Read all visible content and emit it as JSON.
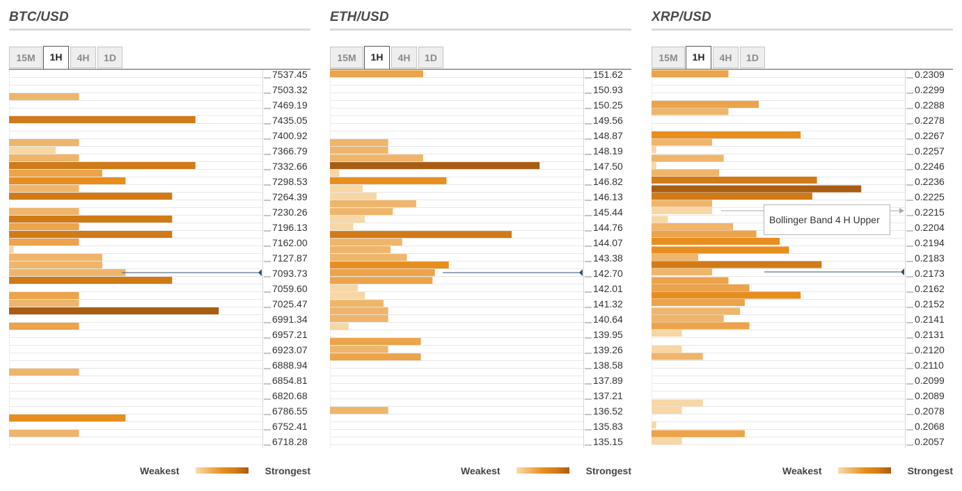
{
  "legend": {
    "weakest": "Weakest",
    "strongest": "Strongest"
  },
  "tooltip": {
    "text": "Bollinger Band 4 H Upper"
  },
  "colors": {
    "l1": "#f7d7a6",
    "l2": "#efb56b",
    "l3": "#eca34a",
    "l4": "#e88e1e",
    "l5": "#d17a18",
    "l6": "#a95d13",
    "grid": "#e8e8e8",
    "marker": "#2f4f6f"
  },
  "chart_data": [
    {
      "type": "bar",
      "title": "BTC/USD",
      "tabs": [
        "15M",
        "1H",
        "4H",
        "1D"
      ],
      "active_tab": "1H",
      "price_labels": [
        "7537.45",
        "7503.32",
        "7469.19",
        "7435.05",
        "7400.92",
        "7366.79",
        "7332.66",
        "7298.53",
        "7264.39",
        "7230.26",
        "7196.13",
        "7162.00",
        "7127.87",
        "7093.73",
        "7059.60",
        "7025.47",
        "6991.34",
        "6957.21",
        "6923.07",
        "6888.94",
        "6854.81",
        "6820.68",
        "6786.55",
        "6752.41",
        "6718.28"
      ],
      "y_range": [
        6718.28,
        7537.45
      ],
      "current_price": 7093.73,
      "bars": [
        {
          "y": 7537.45,
          "value": 0,
          "level": 0
        },
        {
          "y": 7520.38,
          "value": 0,
          "level": 0
        },
        {
          "y": 7503.32,
          "value": 0,
          "level": 0
        },
        {
          "y": 7486.25,
          "value": 3,
          "level": 2
        },
        {
          "y": 7469.19,
          "value": 0,
          "level": 0
        },
        {
          "y": 7452.12,
          "value": 0,
          "level": 0
        },
        {
          "y": 7435.05,
          "value": 8,
          "level": 5
        },
        {
          "y": 7417.98,
          "value": 0,
          "level": 0
        },
        {
          "y": 7400.92,
          "value": 0,
          "level": 0
        },
        {
          "y": 7383.85,
          "value": 3,
          "level": 2
        },
        {
          "y": 7366.79,
          "value": 2,
          "level": 1
        },
        {
          "y": 7349.72,
          "value": 3,
          "level": 2
        },
        {
          "y": 7332.66,
          "value": 8,
          "level": 5
        },
        {
          "y": 7315.59,
          "value": 4,
          "level": 3
        },
        {
          "y": 7298.53,
          "value": 5,
          "level": 4
        },
        {
          "y": 7281.46,
          "value": 3,
          "level": 2
        },
        {
          "y": 7264.39,
          "value": 7,
          "level": 5
        },
        {
          "y": 7247.32,
          "value": 0,
          "level": 0
        },
        {
          "y": 7230.26,
          "value": 3,
          "level": 2
        },
        {
          "y": 7213.19,
          "value": 7,
          "level": 5
        },
        {
          "y": 7196.13,
          "value": 3,
          "level": 3
        },
        {
          "y": 7179.06,
          "value": 7,
          "level": 5
        },
        {
          "y": 7162.0,
          "value": 3,
          "level": 3
        },
        {
          "y": 7144.93,
          "value": 0.2,
          "level": 1
        },
        {
          "y": 7127.87,
          "value": 4,
          "level": 2
        },
        {
          "y": 7110.8,
          "value": 4,
          "level": 2
        },
        {
          "y": 7093.73,
          "value": 5,
          "level": 2
        },
        {
          "y": 7076.66,
          "value": 7,
          "level": 5
        },
        {
          "y": 7059.6,
          "value": 0,
          "level": 0
        },
        {
          "y": 7042.53,
          "value": 3,
          "level": 3
        },
        {
          "y": 7025.47,
          "value": 3,
          "level": 2
        },
        {
          "y": 7008.4,
          "value": 9,
          "level": 6
        },
        {
          "y": 6991.34,
          "value": 0,
          "level": 0
        },
        {
          "y": 6974.27,
          "value": 3,
          "level": 3
        },
        {
          "y": 6957.21,
          "value": 0,
          "level": 0
        },
        {
          "y": 6940.14,
          "value": 0,
          "level": 0
        },
        {
          "y": 6923.07,
          "value": 0,
          "level": 0
        },
        {
          "y": 6906.0,
          "value": 0,
          "level": 0
        },
        {
          "y": 6888.94,
          "value": 0,
          "level": 0
        },
        {
          "y": 6871.87,
          "value": 3,
          "level": 2
        },
        {
          "y": 6854.81,
          "value": 0,
          "level": 0
        },
        {
          "y": 6837.74,
          "value": 0,
          "level": 0
        },
        {
          "y": 6820.68,
          "value": 0,
          "level": 0
        },
        {
          "y": 6803.61,
          "value": 0,
          "level": 0
        },
        {
          "y": 6786.55,
          "value": 0,
          "level": 0
        },
        {
          "y": 6769.48,
          "value": 5,
          "level": 4
        },
        {
          "y": 6752.41,
          "value": 0,
          "level": 0
        },
        {
          "y": 6735.34,
          "value": 3,
          "level": 2
        },
        {
          "y": 6718.28,
          "value": 0,
          "level": 0
        }
      ],
      "x_max": 10
    },
    {
      "type": "bar",
      "title": "ETH/USD",
      "tabs": [
        "15M",
        "1H",
        "4H",
        "1D"
      ],
      "active_tab": "1H",
      "price_labels": [
        "151.62",
        "150.93",
        "150.25",
        "149.56",
        "148.87",
        "148.19",
        "147.50",
        "146.82",
        "146.13",
        "145.44",
        "144.76",
        "144.07",
        "143.38",
        "142.70",
        "142.01",
        "141.32",
        "140.64",
        "139.95",
        "139.26",
        "138.58",
        "137.89",
        "137.21",
        "136.52",
        "135.83",
        "135.15"
      ],
      "y_range": [
        135.15,
        151.62
      ],
      "current_price": 142.7,
      "bars": [
        {
          "y": 151.62,
          "value": 4,
          "level": 3
        },
        {
          "y": 151.28,
          "value": 0,
          "level": 0
        },
        {
          "y": 150.93,
          "value": 0,
          "level": 0
        },
        {
          "y": 150.59,
          "value": 0,
          "level": 0
        },
        {
          "y": 150.25,
          "value": 0,
          "level": 0
        },
        {
          "y": 149.9,
          "value": 0,
          "level": 0
        },
        {
          "y": 149.56,
          "value": 0,
          "level": 0
        },
        {
          "y": 149.22,
          "value": 0,
          "level": 0
        },
        {
          "y": 148.87,
          "value": 0,
          "level": 0
        },
        {
          "y": 148.53,
          "value": 2.5,
          "level": 2
        },
        {
          "y": 148.19,
          "value": 2.5,
          "level": 2
        },
        {
          "y": 147.84,
          "value": 4,
          "level": 2
        },
        {
          "y": 147.5,
          "value": 9,
          "level": 6
        },
        {
          "y": 147.16,
          "value": 0.4,
          "level": 1
        },
        {
          "y": 146.82,
          "value": 5,
          "level": 4
        },
        {
          "y": 146.47,
          "value": 1.4,
          "level": 1
        },
        {
          "y": 146.13,
          "value": 2,
          "level": 1
        },
        {
          "y": 145.79,
          "value": 3.7,
          "level": 2
        },
        {
          "y": 145.44,
          "value": 2.7,
          "level": 2
        },
        {
          "y": 145.1,
          "value": 1.5,
          "level": 1
        },
        {
          "y": 144.76,
          "value": 1,
          "level": 1
        },
        {
          "y": 144.41,
          "value": 7.8,
          "level": 5
        },
        {
          "y": 144.07,
          "value": 3.1,
          "level": 2
        },
        {
          "y": 143.73,
          "value": 2.6,
          "level": 2
        },
        {
          "y": 143.38,
          "value": 3.3,
          "level": 2
        },
        {
          "y": 143.04,
          "value": 5.1,
          "level": 4
        },
        {
          "y": 142.7,
          "value": 4.5,
          "level": 3
        },
        {
          "y": 142.35,
          "value": 4.4,
          "level": 3
        },
        {
          "y": 142.01,
          "value": 1.2,
          "level": 1
        },
        {
          "y": 141.67,
          "value": 1.5,
          "level": 1
        },
        {
          "y": 141.32,
          "value": 2.3,
          "level": 2
        },
        {
          "y": 140.98,
          "value": 2.5,
          "level": 2
        },
        {
          "y": 140.64,
          "value": 2.5,
          "level": 2
        },
        {
          "y": 140.29,
          "value": 0.8,
          "level": 1
        },
        {
          "y": 139.95,
          "value": 0,
          "level": 0
        },
        {
          "y": 139.61,
          "value": 3.9,
          "level": 3
        },
        {
          "y": 139.26,
          "value": 2.5,
          "level": 2
        },
        {
          "y": 138.92,
          "value": 3.9,
          "level": 3
        },
        {
          "y": 138.58,
          "value": 0,
          "level": 0
        },
        {
          "y": 138.23,
          "value": 0,
          "level": 0
        },
        {
          "y": 137.89,
          "value": 0,
          "level": 0
        },
        {
          "y": 137.55,
          "value": 0,
          "level": 0
        },
        {
          "y": 137.21,
          "value": 0,
          "level": 0
        },
        {
          "y": 136.86,
          "value": 0,
          "level": 0
        },
        {
          "y": 136.52,
          "value": 2.5,
          "level": 2
        },
        {
          "y": 136.18,
          "value": 0,
          "level": 0
        },
        {
          "y": 135.83,
          "value": 0,
          "level": 0
        },
        {
          "y": 135.49,
          "value": 0,
          "level": 0
        },
        {
          "y": 135.15,
          "value": 0,
          "level": 0
        }
      ],
      "x_max": 10
    },
    {
      "type": "bar",
      "title": "XRP/USD",
      "tabs": [
        "15M",
        "1H",
        "4H",
        "1D"
      ],
      "active_tab": "1H",
      "price_labels": [
        "0.2309",
        "0.2299",
        "0.2288",
        "0.2278",
        "0.2267",
        "0.2257",
        "0.2246",
        "0.2236",
        "0.2225",
        "0.2215",
        "0.2204",
        "0.2194",
        "0.2183",
        "0.2173",
        "0.2162",
        "0.2152",
        "0.2141",
        "0.2131",
        "0.2120",
        "0.2110",
        "0.2099",
        "0.2089",
        "0.2078",
        "0.2068",
        "0.2057"
      ],
      "y_range": [
        0.2057,
        0.2309
      ],
      "current_price": 0.2173,
      "annotation": {
        "y": 0.2215,
        "text": "Bollinger Band 4 H Upper"
      },
      "bars": [
        {
          "y": 0.2309,
          "value": 3.3,
          "level": 3
        },
        {
          "y": 0.2304,
          "value": 0,
          "level": 0
        },
        {
          "y": 0.2299,
          "value": 0,
          "level": 0
        },
        {
          "y": 0.2293,
          "value": 0,
          "level": 0
        },
        {
          "y": 0.2288,
          "value": 4.6,
          "level": 3
        },
        {
          "y": 0.2283,
          "value": 3.3,
          "level": 2
        },
        {
          "y": 0.2278,
          "value": 0,
          "level": 0
        },
        {
          "y": 0.2273,
          "value": 0,
          "level": 0
        },
        {
          "y": 0.2267,
          "value": 6.4,
          "level": 4
        },
        {
          "y": 0.2262,
          "value": 2.6,
          "level": 2
        },
        {
          "y": 0.2257,
          "value": 0.2,
          "level": 1
        },
        {
          "y": 0.2251,
          "value": 3.1,
          "level": 2
        },
        {
          "y": 0.2246,
          "value": 0.2,
          "level": 1
        },
        {
          "y": 0.2241,
          "value": 2.9,
          "level": 2
        },
        {
          "y": 0.2236,
          "value": 7.1,
          "level": 5
        },
        {
          "y": 0.223,
          "value": 9,
          "level": 6
        },
        {
          "y": 0.2225,
          "value": 6.9,
          "level": 5
        },
        {
          "y": 0.222,
          "value": 2.6,
          "level": 2
        },
        {
          "y": 0.2215,
          "value": 2.6,
          "level": 1
        },
        {
          "y": 0.2209,
          "value": 0.7,
          "level": 1
        },
        {
          "y": 0.2204,
          "value": 3.5,
          "level": 2
        },
        {
          "y": 0.2199,
          "value": 4.5,
          "level": 3
        },
        {
          "y": 0.2194,
          "value": 5.5,
          "level": 4
        },
        {
          "y": 0.2188,
          "value": 5.9,
          "level": 4
        },
        {
          "y": 0.2183,
          "value": 2,
          "level": 2
        },
        {
          "y": 0.2178,
          "value": 7.3,
          "level": 5
        },
        {
          "y": 0.2173,
          "value": 2.6,
          "level": 2
        },
        {
          "y": 0.2167,
          "value": 3.3,
          "level": 3
        },
        {
          "y": 0.2162,
          "value": 4.2,
          "level": 3
        },
        {
          "y": 0.2157,
          "value": 6.4,
          "level": 4
        },
        {
          "y": 0.2152,
          "value": 4,
          "level": 3
        },
        {
          "y": 0.2146,
          "value": 3.8,
          "level": 2
        },
        {
          "y": 0.2141,
          "value": 3.1,
          "level": 2
        },
        {
          "y": 0.2136,
          "value": 4.2,
          "level": 3
        },
        {
          "y": 0.2131,
          "value": 1.3,
          "level": 1
        },
        {
          "y": 0.2125,
          "value": 0,
          "level": 0
        },
        {
          "y": 0.212,
          "value": 1.3,
          "level": 1
        },
        {
          "y": 0.2115,
          "value": 2.2,
          "level": 2
        },
        {
          "y": 0.211,
          "value": 0,
          "level": 0
        },
        {
          "y": 0.2104,
          "value": 0,
          "level": 0
        },
        {
          "y": 0.2099,
          "value": 0,
          "level": 0
        },
        {
          "y": 0.2094,
          "value": 0,
          "level": 0
        },
        {
          "y": 0.2089,
          "value": 0,
          "level": 0
        },
        {
          "y": 0.2083,
          "value": 2.2,
          "level": 1
        },
        {
          "y": 0.2078,
          "value": 1.3,
          "level": 1
        },
        {
          "y": 0.2073,
          "value": 0,
          "level": 0
        },
        {
          "y": 0.2068,
          "value": 0.2,
          "level": 1
        },
        {
          "y": 0.2062,
          "value": 4,
          "level": 3
        },
        {
          "y": 0.2057,
          "value": 1.3,
          "level": 1
        }
      ],
      "x_max": 10
    }
  ]
}
